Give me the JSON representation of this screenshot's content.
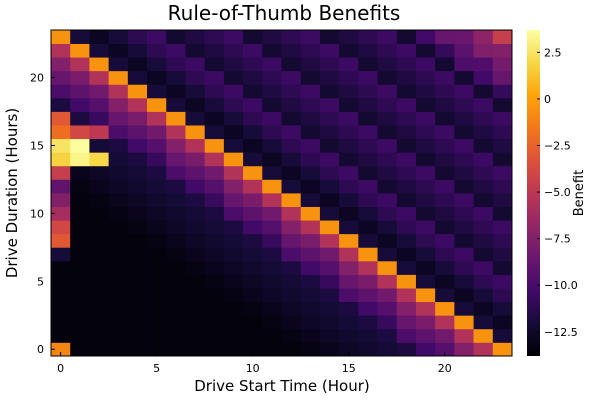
{
  "chart_data": {
    "type": "heatmap",
    "title": "Rule-of-Thumb Benefits",
    "xlabel": "Drive Start Time (Hour)",
    "ylabel": "Drive Duration (Hours)",
    "colorbar_label": "Benefit",
    "colormap": "inferno",
    "x": [
      0,
      1,
      2,
      3,
      4,
      5,
      6,
      7,
      8,
      9,
      10,
      11,
      12,
      13,
      14,
      15,
      16,
      17,
      18,
      19,
      20,
      21,
      22,
      23
    ],
    "y": [
      0,
      1,
      2,
      3,
      4,
      5,
      6,
      7,
      8,
      9,
      10,
      11,
      12,
      13,
      14,
      15,
      16,
      17,
      18,
      19,
      20,
      21,
      22,
      23
    ],
    "x_ticks": [
      0,
      5,
      10,
      15,
      20
    ],
    "x_tick_labels": [
      "0",
      "5",
      "10",
      "15",
      "20"
    ],
    "y_ticks": [
      0,
      5,
      10,
      15,
      20
    ],
    "y_tick_labels": [
      "0",
      "5",
      "10",
      "15",
      "20"
    ],
    "colorbar_ticks": [
      2.5,
      0,
      -2.5,
      -5.0,
      -7.5,
      -10.0,
      -12.5
    ],
    "colorbar_tick_labels": [
      "2.5",
      "0",
      "−2.5",
      "−5.0",
      "−7.5",
      "−10.0",
      "−12.5"
    ],
    "zlim": [
      -13.8,
      3.7
    ],
    "grid": false,
    "value_note": "z-values approximated: bright diagonal band where start+duration = 23 or 47; cells near the band are purple, farther are near-black",
    "special_cells": [
      {
        "x": 0,
        "y": 0,
        "z": -1.0
      },
      {
        "x": 0,
        "y": 14,
        "z": 1.8
      },
      {
        "x": 0,
        "y": 15,
        "z": 2.5
      },
      {
        "x": 1,
        "y": 14,
        "z": 3.2
      },
      {
        "x": 1,
        "y": 15,
        "z": 3.6
      },
      {
        "x": 2,
        "y": 14,
        "z": 2.0
      },
      {
        "x": 0,
        "y": 17,
        "z": -3.0
      },
      {
        "x": 0,
        "y": 16,
        "z": -2.0
      },
      {
        "x": 1,
        "y": 16,
        "z": -4.0
      },
      {
        "x": 2,
        "y": 16,
        "z": -5.0
      },
      {
        "x": 0,
        "y": 13,
        "z": -4.5
      },
      {
        "x": 0,
        "y": 12,
        "z": -9.0
      },
      {
        "x": 0,
        "y": 11,
        "z": -7.5
      },
      {
        "x": 0,
        "y": 10,
        "z": -6.0
      },
      {
        "x": 0,
        "y": 9,
        "z": -4.0
      },
      {
        "x": 0,
        "y": 8,
        "z": -3.0
      },
      {
        "x": 0,
        "y": 7,
        "z": -12.0
      }
    ]
  }
}
